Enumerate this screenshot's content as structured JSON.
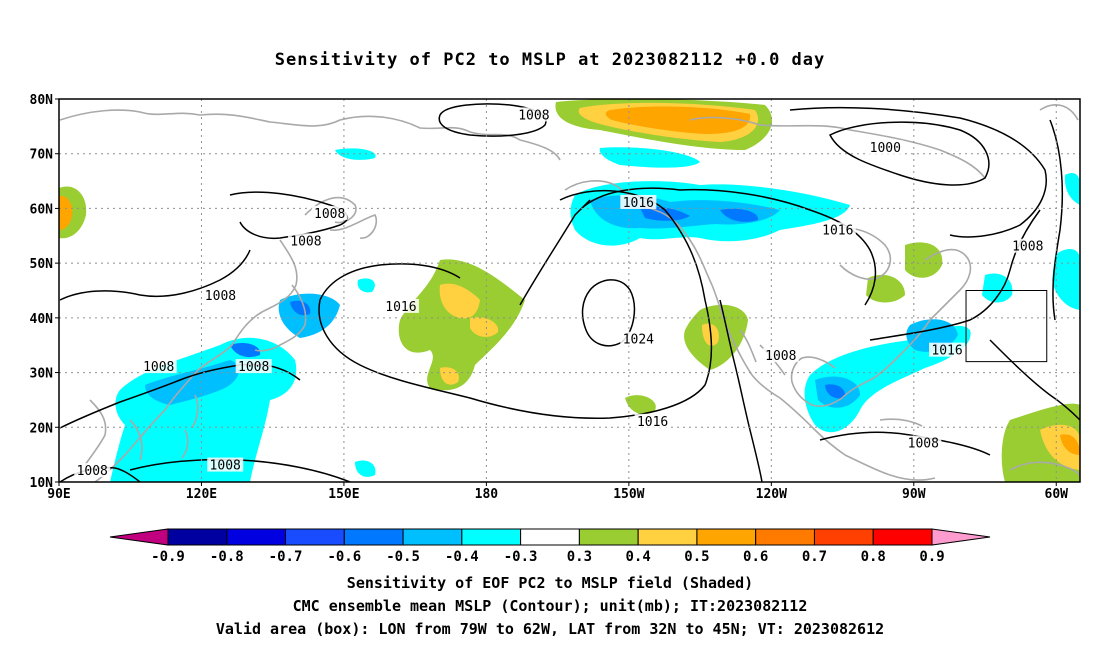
{
  "title": "Sensitivity of PC2 to MSLP at 2023082112 +0.0 day",
  "map": {
    "lat_labels": [
      "80N",
      "70N",
      "60N",
      "50N",
      "40N",
      "30N",
      "20N",
      "10N"
    ],
    "lon_labels": [
      "90E",
      "120E",
      "150E",
      "180",
      "150W",
      "120W",
      "90W",
      "60W"
    ],
    "lat_range": [
      10,
      80
    ],
    "lon_range": [
      90,
      305
    ],
    "grid": "dotted",
    "valid_box": {
      "lon": [
        -79,
        -62
      ],
      "lat": [
        32,
        45
      ]
    },
    "contour_labels": [
      {
        "text": "1008",
        "lon": 190,
        "lat": 77
      },
      {
        "text": "1000",
        "lon": 264,
        "lat": 71
      },
      {
        "text": "1008",
        "lon": 147,
        "lat": 59
      },
      {
        "text": "1008",
        "lon": 142,
        "lat": 54
      },
      {
        "text": "1016",
        "lon": 212,
        "lat": 61
      },
      {
        "text": "1016",
        "lon": 254,
        "lat": 56
      },
      {
        "text": "1008",
        "lon": 294,
        "lat": 53
      },
      {
        "text": "1008",
        "lon": 124,
        "lat": 44
      },
      {
        "text": "1016",
        "lon": 162,
        "lat": 42
      },
      {
        "text": "1024",
        "lon": 212,
        "lat": 36
      },
      {
        "text": "1008",
        "lon": 242,
        "lat": 33
      },
      {
        "text": "1016",
        "lon": 277,
        "lat": 34
      },
      {
        "text": "1008",
        "lon": 111,
        "lat": 31
      },
      {
        "text": "1008",
        "lon": 131,
        "lat": 31
      },
      {
        "text": "1016",
        "lon": 215,
        "lat": 21
      },
      {
        "text": "1008",
        "lon": 272,
        "lat": 17
      },
      {
        "text": "1008",
        "lon": 125,
        "lat": 13
      },
      {
        "text": "1008",
        "lon": 97,
        "lat": 12
      }
    ]
  },
  "colorbar": {
    "labels": [
      "-0.9",
      "-0.8",
      "-0.7",
      "-0.6",
      "-0.5",
      "-0.4",
      "-0.3",
      "0.3",
      "0.4",
      "0.5",
      "0.6",
      "0.7",
      "0.8",
      "0.9"
    ],
    "colors": [
      "#c0007f",
      "#0000a0",
      "#0000e0",
      "#1a4cff",
      "#0078ff",
      "#00bfff",
      "#00ffff",
      "#ffffff",
      "#9acd32",
      "#ffd040",
      "#ffa500",
      "#ff7b00",
      "#ff4000",
      "#ff0000",
      "#ff9ccf"
    ]
  },
  "colors": {
    "coast": "#a9a9a9",
    "contour": "#000000",
    "grid": "#909090"
  },
  "captions": {
    "line1": "Sensitivity of EOF PC2 to MSLP field (Shaded)",
    "line2": "CMC ensemble mean MSLP (Contour); unit(mb); IT:2023082112",
    "line3": "Valid area (box): LON from 79W to 62W, LAT from 32N to 45N; VT: 2023082612"
  }
}
